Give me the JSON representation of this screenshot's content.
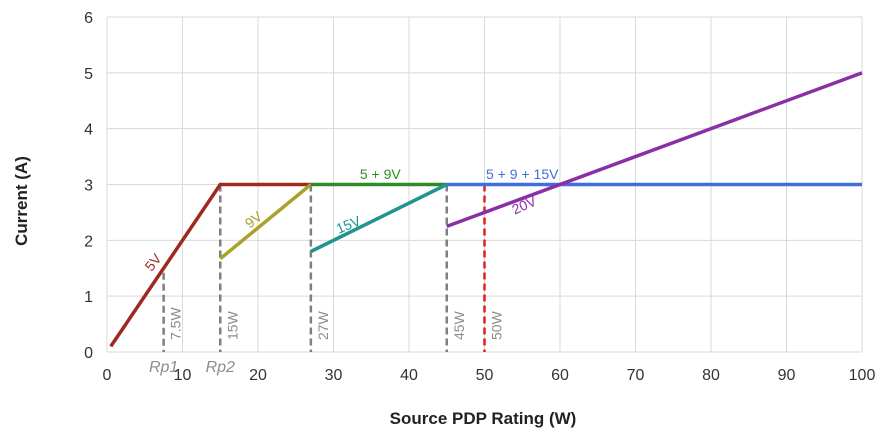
{
  "chart_data": {
    "type": "line",
    "xlabel": "Source PDP Rating (W)",
    "ylabel": "Current (A)",
    "xlim": [
      0,
      100
    ],
    "ylim": [
      0,
      6
    ],
    "xticks": [
      0,
      10,
      20,
      30,
      40,
      50,
      60,
      70,
      80,
      90,
      100
    ],
    "yticks": [
      0,
      1,
      2,
      3,
      4,
      5,
      6
    ],
    "grid": true,
    "series": [
      {
        "name": "5V",
        "color": "#9e2a1f",
        "x": [
          0.5,
          15,
          27
        ],
        "y": [
          0.1,
          3,
          3
        ]
      },
      {
        "name": "9V",
        "color": "#a9a12a",
        "x": [
          15,
          27
        ],
        "y": [
          1.67,
          3
        ]
      },
      {
        "name": "5 + 9V",
        "color": "#2e8b26",
        "x": [
          27,
          45
        ],
        "y": [
          3,
          3
        ]
      },
      {
        "name": "15V",
        "color": "#1f9490",
        "x": [
          27,
          45
        ],
        "y": [
          1.8,
          3
        ]
      },
      {
        "name": "5 + 9 + 15V",
        "color": "#3f6fdc",
        "x": [
          45,
          100
        ],
        "y": [
          3,
          3
        ]
      },
      {
        "name": "20V",
        "color": "#8a2fa6",
        "x": [
          45,
          100
        ],
        "y": [
          2.25,
          5
        ]
      }
    ],
    "vlines": [
      {
        "x": 7.5,
        "label": "7.5W",
        "color": "#7f7f7f",
        "style": "dashed"
      },
      {
        "x": 15,
        "label": "15W",
        "color": "#7f7f7f",
        "style": "dashed"
      },
      {
        "x": 27,
        "label": "27W",
        "color": "#7f7f7f",
        "style": "dashed"
      },
      {
        "x": 45,
        "label": "45W",
        "color": "#7f7f7f",
        "style": "dashed"
      },
      {
        "x": 50,
        "label": "50W",
        "color": "#e02020",
        "style": "dashed"
      }
    ],
    "annotations": [
      {
        "text": "Rp1",
        "x": 7.5
      },
      {
        "text": "Rp2",
        "x": 15
      }
    ]
  }
}
